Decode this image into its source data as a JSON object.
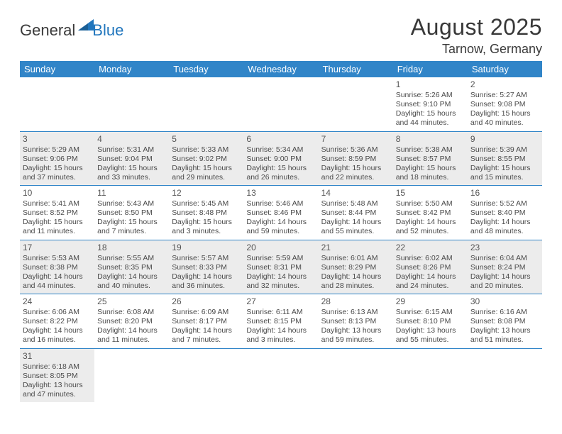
{
  "logo": {
    "general": "General",
    "blue": "Blue"
  },
  "title": {
    "month_year": "August 2025",
    "location": "Tarnow, Germany"
  },
  "colors": {
    "header_bg": "#3185c8",
    "header_text": "#ffffff",
    "shaded_row": "#ececec",
    "row_border": "#3185c8",
    "body_text": "#4a4a4a",
    "title_text": "#383838",
    "logo_blue": "#2176bd"
  },
  "weekdays": [
    "Sunday",
    "Monday",
    "Tuesday",
    "Wednesday",
    "Thursday",
    "Friday",
    "Saturday"
  ],
  "weeks": [
    {
      "shaded": false,
      "days": [
        null,
        null,
        null,
        null,
        null,
        {
          "n": "1",
          "sr": "Sunrise: 5:26 AM",
          "ss": "Sunset: 9:10 PM",
          "d1": "Daylight: 15 hours",
          "d2": "and 44 minutes."
        },
        {
          "n": "2",
          "sr": "Sunrise: 5:27 AM",
          "ss": "Sunset: 9:08 PM",
          "d1": "Daylight: 15 hours",
          "d2": "and 40 minutes."
        }
      ]
    },
    {
      "shaded": true,
      "days": [
        {
          "n": "3",
          "sr": "Sunrise: 5:29 AM",
          "ss": "Sunset: 9:06 PM",
          "d1": "Daylight: 15 hours",
          "d2": "and 37 minutes."
        },
        {
          "n": "4",
          "sr": "Sunrise: 5:31 AM",
          "ss": "Sunset: 9:04 PM",
          "d1": "Daylight: 15 hours",
          "d2": "and 33 minutes."
        },
        {
          "n": "5",
          "sr": "Sunrise: 5:33 AM",
          "ss": "Sunset: 9:02 PM",
          "d1": "Daylight: 15 hours",
          "d2": "and 29 minutes."
        },
        {
          "n": "6",
          "sr": "Sunrise: 5:34 AM",
          "ss": "Sunset: 9:00 PM",
          "d1": "Daylight: 15 hours",
          "d2": "and 26 minutes."
        },
        {
          "n": "7",
          "sr": "Sunrise: 5:36 AM",
          "ss": "Sunset: 8:59 PM",
          "d1": "Daylight: 15 hours",
          "d2": "and 22 minutes."
        },
        {
          "n": "8",
          "sr": "Sunrise: 5:38 AM",
          "ss": "Sunset: 8:57 PM",
          "d1": "Daylight: 15 hours",
          "d2": "and 18 minutes."
        },
        {
          "n": "9",
          "sr": "Sunrise: 5:39 AM",
          "ss": "Sunset: 8:55 PM",
          "d1": "Daylight: 15 hours",
          "d2": "and 15 minutes."
        }
      ]
    },
    {
      "shaded": false,
      "days": [
        {
          "n": "10",
          "sr": "Sunrise: 5:41 AM",
          "ss": "Sunset: 8:52 PM",
          "d1": "Daylight: 15 hours",
          "d2": "and 11 minutes."
        },
        {
          "n": "11",
          "sr": "Sunrise: 5:43 AM",
          "ss": "Sunset: 8:50 PM",
          "d1": "Daylight: 15 hours",
          "d2": "and 7 minutes."
        },
        {
          "n": "12",
          "sr": "Sunrise: 5:45 AM",
          "ss": "Sunset: 8:48 PM",
          "d1": "Daylight: 15 hours",
          "d2": "and 3 minutes."
        },
        {
          "n": "13",
          "sr": "Sunrise: 5:46 AM",
          "ss": "Sunset: 8:46 PM",
          "d1": "Daylight: 14 hours",
          "d2": "and 59 minutes."
        },
        {
          "n": "14",
          "sr": "Sunrise: 5:48 AM",
          "ss": "Sunset: 8:44 PM",
          "d1": "Daylight: 14 hours",
          "d2": "and 55 minutes."
        },
        {
          "n": "15",
          "sr": "Sunrise: 5:50 AM",
          "ss": "Sunset: 8:42 PM",
          "d1": "Daylight: 14 hours",
          "d2": "and 52 minutes."
        },
        {
          "n": "16",
          "sr": "Sunrise: 5:52 AM",
          "ss": "Sunset: 8:40 PM",
          "d1": "Daylight: 14 hours",
          "d2": "and 48 minutes."
        }
      ]
    },
    {
      "shaded": true,
      "days": [
        {
          "n": "17",
          "sr": "Sunrise: 5:53 AM",
          "ss": "Sunset: 8:38 PM",
          "d1": "Daylight: 14 hours",
          "d2": "and 44 minutes."
        },
        {
          "n": "18",
          "sr": "Sunrise: 5:55 AM",
          "ss": "Sunset: 8:35 PM",
          "d1": "Daylight: 14 hours",
          "d2": "and 40 minutes."
        },
        {
          "n": "19",
          "sr": "Sunrise: 5:57 AM",
          "ss": "Sunset: 8:33 PM",
          "d1": "Daylight: 14 hours",
          "d2": "and 36 minutes."
        },
        {
          "n": "20",
          "sr": "Sunrise: 5:59 AM",
          "ss": "Sunset: 8:31 PM",
          "d1": "Daylight: 14 hours",
          "d2": "and 32 minutes."
        },
        {
          "n": "21",
          "sr": "Sunrise: 6:01 AM",
          "ss": "Sunset: 8:29 PM",
          "d1": "Daylight: 14 hours",
          "d2": "and 28 minutes."
        },
        {
          "n": "22",
          "sr": "Sunrise: 6:02 AM",
          "ss": "Sunset: 8:26 PM",
          "d1": "Daylight: 14 hours",
          "d2": "and 24 minutes."
        },
        {
          "n": "23",
          "sr": "Sunrise: 6:04 AM",
          "ss": "Sunset: 8:24 PM",
          "d1": "Daylight: 14 hours",
          "d2": "and 20 minutes."
        }
      ]
    },
    {
      "shaded": false,
      "days": [
        {
          "n": "24",
          "sr": "Sunrise: 6:06 AM",
          "ss": "Sunset: 8:22 PM",
          "d1": "Daylight: 14 hours",
          "d2": "and 16 minutes."
        },
        {
          "n": "25",
          "sr": "Sunrise: 6:08 AM",
          "ss": "Sunset: 8:20 PM",
          "d1": "Daylight: 14 hours",
          "d2": "and 11 minutes."
        },
        {
          "n": "26",
          "sr": "Sunrise: 6:09 AM",
          "ss": "Sunset: 8:17 PM",
          "d1": "Daylight: 14 hours",
          "d2": "and 7 minutes."
        },
        {
          "n": "27",
          "sr": "Sunrise: 6:11 AM",
          "ss": "Sunset: 8:15 PM",
          "d1": "Daylight: 14 hours",
          "d2": "and 3 minutes."
        },
        {
          "n": "28",
          "sr": "Sunrise: 6:13 AM",
          "ss": "Sunset: 8:13 PM",
          "d1": "Daylight: 13 hours",
          "d2": "and 59 minutes."
        },
        {
          "n": "29",
          "sr": "Sunrise: 6:15 AM",
          "ss": "Sunset: 8:10 PM",
          "d1": "Daylight: 13 hours",
          "d2": "and 55 minutes."
        },
        {
          "n": "30",
          "sr": "Sunrise: 6:16 AM",
          "ss": "Sunset: 8:08 PM",
          "d1": "Daylight: 13 hours",
          "d2": "and 51 minutes."
        }
      ]
    },
    {
      "shaded": true,
      "days": [
        {
          "n": "31",
          "sr": "Sunrise: 6:18 AM",
          "ss": "Sunset: 8:05 PM",
          "d1": "Daylight: 13 hours",
          "d2": "and 47 minutes."
        },
        null,
        null,
        null,
        null,
        null,
        null
      ]
    }
  ]
}
